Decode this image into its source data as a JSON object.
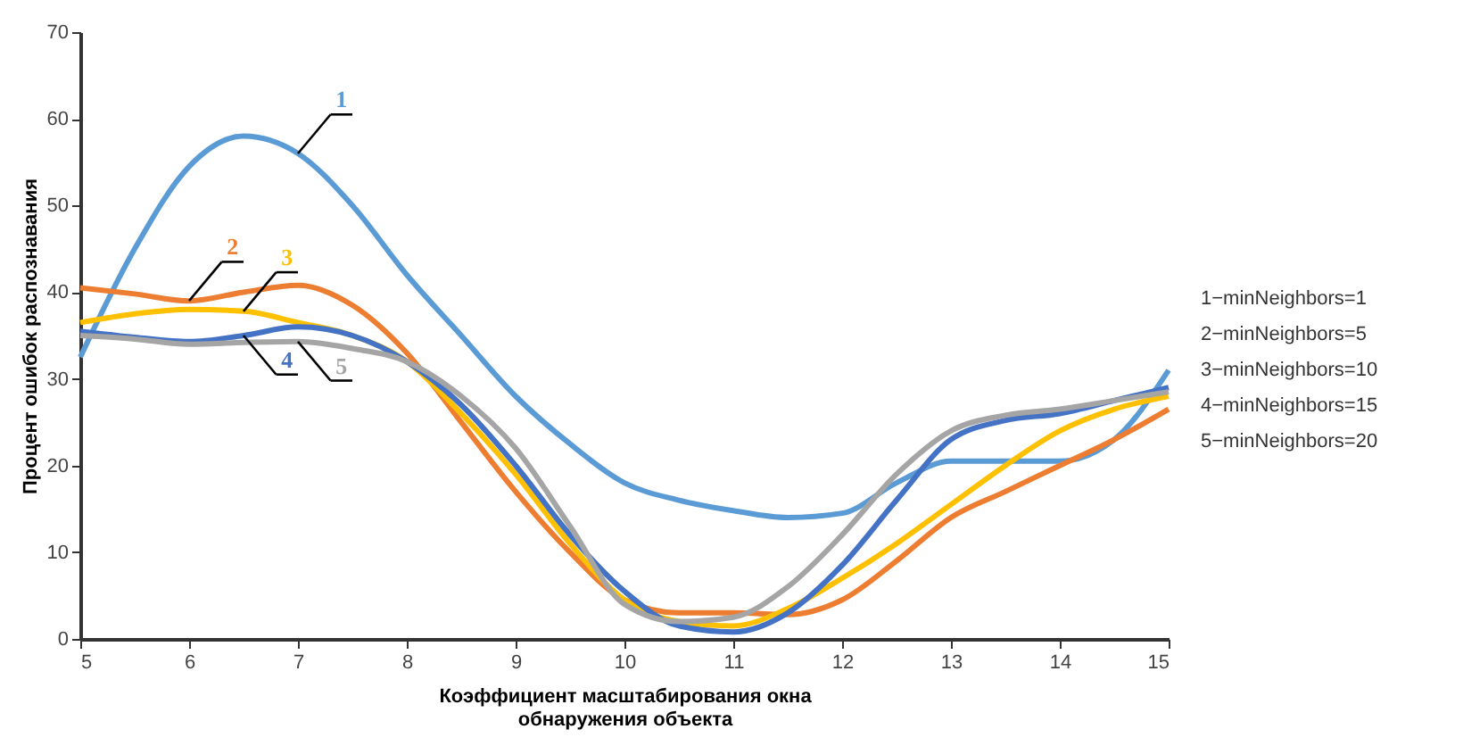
{
  "chart_data": {
    "type": "line",
    "xlabel": "Коэффициент  масштабирования окна обнаружения объекта",
    "ylabel": "Процент ошибок распознавания",
    "x": [
      5,
      5.5,
      6,
      6.5,
      7,
      7.5,
      8,
      8.5,
      9,
      9.5,
      10,
      10.5,
      11,
      11.5,
      12,
      12.5,
      13,
      13.5,
      14,
      14.5,
      15
    ],
    "series": [
      {
        "name": "1",
        "color": "#5b9bd5",
        "values": [
          32.5,
          45,
          54.5,
          58,
          56,
          50,
          42,
          35,
          28,
          22.5,
          18,
          16,
          14.8,
          14,
          14.5,
          18,
          20.5,
          20.5,
          20.5,
          23,
          31
        ]
      },
      {
        "name": "2",
        "color": "#ed7d31",
        "values": [
          40.5,
          39.8,
          39,
          40,
          40.8,
          38.5,
          33,
          25,
          17,
          10,
          4.5,
          3,
          3,
          2.8,
          4.5,
          9,
          14,
          17,
          20,
          23,
          26.5
        ]
      },
      {
        "name": "3",
        "color": "#ffc000",
        "values": [
          36.5,
          37.5,
          38,
          37.8,
          36.5,
          35,
          32,
          26,
          19,
          11,
          4.5,
          2,
          1.5,
          3.5,
          7,
          11,
          15.5,
          20,
          24,
          26.5,
          28
        ]
      },
      {
        "name": "4",
        "color": "#4472c4",
        "values": [
          35.5,
          34.8,
          34.3,
          35,
          36,
          35,
          32,
          27,
          20,
          12,
          5.5,
          1.5,
          0.8,
          3,
          8.5,
          16,
          23,
          25.2,
          26,
          27.5,
          29
        ]
      },
      {
        "name": "5",
        "color": "#a5a5a5",
        "values": [
          35,
          34.6,
          34,
          34.2,
          34.3,
          33.5,
          32,
          28,
          22,
          13,
          4,
          2,
          2.5,
          6,
          12,
          19,
          24,
          25.8,
          26.5,
          27.5,
          28.5
        ]
      }
    ],
    "annotations": [
      "1−minNeighbors=1",
      "2−minNeighbors=5",
      "3−minNeighbors=10",
      "4−minNeighbors=15",
      "5−minNeighbors=20"
    ],
    "xlim": [
      5,
      15
    ],
    "xticks": [
      5,
      6,
      7,
      8,
      9,
      10,
      11,
      12,
      13,
      14,
      15
    ],
    "ylim": [
      0,
      70
    ],
    "yticks": [
      0,
      10,
      20,
      30,
      40,
      50,
      60,
      70
    ],
    "grid": false,
    "line_style": "solid",
    "marker": "none"
  }
}
